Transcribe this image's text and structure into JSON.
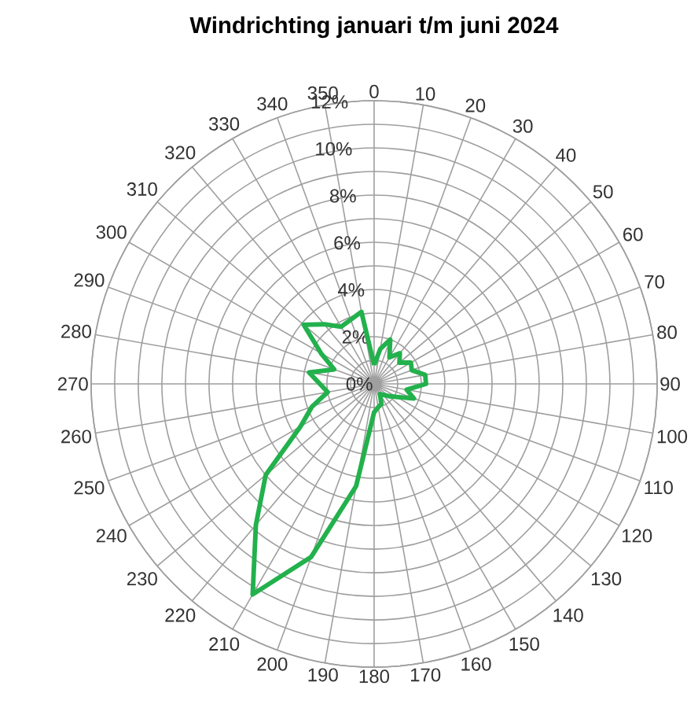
{
  "chart_data": {
    "type": "radar",
    "title": "Windrichting januari t/m juni 2024",
    "categories": [
      "0",
      "10",
      "20",
      "30",
      "40",
      "50",
      "60",
      "70",
      "80",
      "90",
      "100",
      "110",
      "120",
      "130",
      "140",
      "150",
      "160",
      "170",
      "180",
      "190",
      "200",
      "210",
      "220",
      "230",
      "240",
      "250",
      "260",
      "270",
      "280",
      "290",
      "300",
      "310",
      "320",
      "330",
      "340",
      "350"
    ],
    "series": [
      {
        "color": "#22b14c",
        "values": [
          0.8,
          1.5,
          2.0,
          1.3,
          1.7,
          1.4,
          1.8,
          1.7,
          2.2,
          2.2,
          1.4,
          1.8,
          1.1,
          0.8,
          0.6,
          0.5,
          0.9,
          1.0,
          1.2,
          4.4,
          7.8,
          10.3,
          7.8,
          6.0,
          3.6,
          2.8,
          2.0,
          2.3,
          2.8,
          1.8,
          2.6,
          3.9,
          3.3,
          2.8,
          2.9,
          3.1
        ]
      }
    ],
    "ylim": [
      0,
      12
    ],
    "yticks": [
      {
        "value": 0,
        "label": "0%"
      },
      {
        "value": 2,
        "label": "2%"
      },
      {
        "value": 4,
        "label": "4%"
      },
      {
        "value": 6,
        "label": "6%"
      },
      {
        "value": 8,
        "label": "8%"
      },
      {
        "value": 10,
        "label": "10%"
      },
      {
        "value": 12,
        "label": "12%"
      }
    ],
    "grid": true
  }
}
